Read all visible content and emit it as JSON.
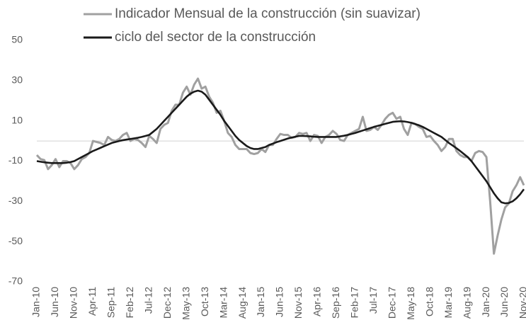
{
  "chart_data": {
    "type": "line",
    "categories": [
      "Jan-10",
      null,
      null,
      null,
      null,
      "Jun-10",
      null,
      null,
      null,
      null,
      "Nov-10",
      null,
      null,
      null,
      null,
      "Apr-11",
      null,
      null,
      null,
      null,
      "Sep-11",
      null,
      null,
      null,
      null,
      "Feb-12",
      null,
      null,
      null,
      null,
      "Jul-12",
      null,
      null,
      null,
      null,
      "Dec-12",
      null,
      null,
      null,
      null,
      "May-13",
      null,
      null,
      null,
      null,
      "Oct-13",
      null,
      null,
      null,
      null,
      "Mar-14",
      null,
      null,
      null,
      null,
      "Aug-14",
      null,
      null,
      null,
      null,
      "Jan-15",
      null,
      null,
      null,
      null,
      "Jun-15",
      null,
      null,
      null,
      null,
      "Nov-15",
      null,
      null,
      null,
      null,
      "Apr-16",
      null,
      null,
      null,
      null,
      "Sep-16",
      null,
      null,
      null,
      null,
      "Feb-17",
      null,
      null,
      null,
      null,
      "Jul-17",
      null,
      null,
      null,
      null,
      "Dec-17",
      null,
      null,
      null,
      null,
      "May-18",
      null,
      null,
      null,
      null,
      "Oct-18",
      null,
      null,
      null,
      null,
      "Mar-19",
      null,
      null,
      null,
      null,
      "Aug-19",
      null,
      null,
      null,
      null,
      "Jan-20",
      null,
      null,
      null,
      null,
      "Jun-20",
      null,
      null,
      null,
      null,
      "Nov-20"
    ],
    "series": [
      {
        "name": "Indicador Mensual de la construcción (sin suavizar)",
        "color": "#a0a0a0",
        "values": [
          -7,
          -9,
          -9.5,
          -14,
          -12,
          -9,
          -13,
          -10,
          -10,
          -11,
          -14,
          -12,
          -9,
          -8,
          -6,
          0,
          -0.5,
          -1,
          -2,
          2,
          0.5,
          0,
          1,
          3,
          4,
          0,
          1,
          0.5,
          -1,
          -3,
          2.5,
          1,
          -1,
          6,
          8,
          9,
          15,
          18,
          18,
          24,
          27,
          23,
          28,
          31,
          26,
          27,
          22,
          19,
          14,
          15,
          10,
          4,
          2,
          -2,
          -4,
          -4,
          -4,
          -6,
          -6.5,
          -6,
          -4,
          -5.5,
          -2,
          -2,
          1,
          3.5,
          3,
          3,
          1.5,
          2,
          4,
          3.5,
          4,
          0,
          3,
          2.5,
          -1,
          2,
          3,
          5,
          3.5,
          0.5,
          0,
          3,
          4,
          5,
          6,
          12,
          5,
          5.5,
          7,
          5.5,
          8,
          11,
          13,
          14,
          11,
          12,
          6,
          3,
          9,
          8.5,
          7,
          6,
          2,
          2.5,
          0,
          -2,
          -5,
          -3,
          1,
          1,
          -5,
          -7,
          -8,
          -8,
          -10,
          -6,
          -5,
          -5.5,
          -8,
          -30,
          -56,
          -47,
          -39,
          -33,
          -31,
          -25,
          -22,
          -18,
          -22
        ]
      },
      {
        "name": "ciclo del sector de la construcción",
        "color": "#1a1a1a",
        "values": [
          -10,
          -10.3,
          -10.6,
          -10.8,
          -11,
          -11,
          -11,
          -11,
          -10.8,
          -10.5,
          -10,
          -9,
          -8,
          -7,
          -6,
          -5,
          -4.2,
          -3.4,
          -2.6,
          -1.8,
          -1,
          -0.5,
          0,
          0.4,
          0.7,
          1,
          1.3,
          1.6,
          2,
          2.5,
          3,
          4.5,
          6,
          8,
          10,
          12,
          14,
          16,
          18,
          20,
          22,
          23.5,
          24.5,
          25,
          24.5,
          23,
          20.5,
          18,
          15.5,
          13,
          10,
          7.5,
          5,
          2.5,
          0.5,
          -1,
          -2.5,
          -3.5,
          -4,
          -4,
          -3.5,
          -3,
          -2,
          -1.3,
          -0.6,
          0,
          0.6,
          1.2,
          1.7,
          2.1,
          2.5,
          2.5,
          2.4,
          2.3,
          2.1,
          2,
          2,
          2,
          2,
          2,
          2,
          2.3,
          2.6,
          3,
          3.5,
          4,
          4.6,
          5.2,
          5.8,
          6.4,
          7,
          7.5,
          8,
          8.5,
          9,
          9.5,
          9.7,
          9.8,
          9.7,
          9.4,
          9,
          8.4,
          7.8,
          7,
          6,
          5,
          4,
          3,
          2,
          0.5,
          -1,
          -2.3,
          -3.6,
          -5,
          -6.5,
          -8,
          -10,
          -12.5,
          -15,
          -17.5,
          -20,
          -23,
          -26,
          -28.5,
          -30.5,
          -31,
          -30.8,
          -30,
          -28.5,
          -26.5,
          -24
        ]
      }
    ],
    "ylim": [
      -70,
      50
    ],
    "yticks": [
      -70,
      -50,
      -30,
      -10,
      10,
      30,
      50
    ],
    "grid": false,
    "legend": "top"
  }
}
